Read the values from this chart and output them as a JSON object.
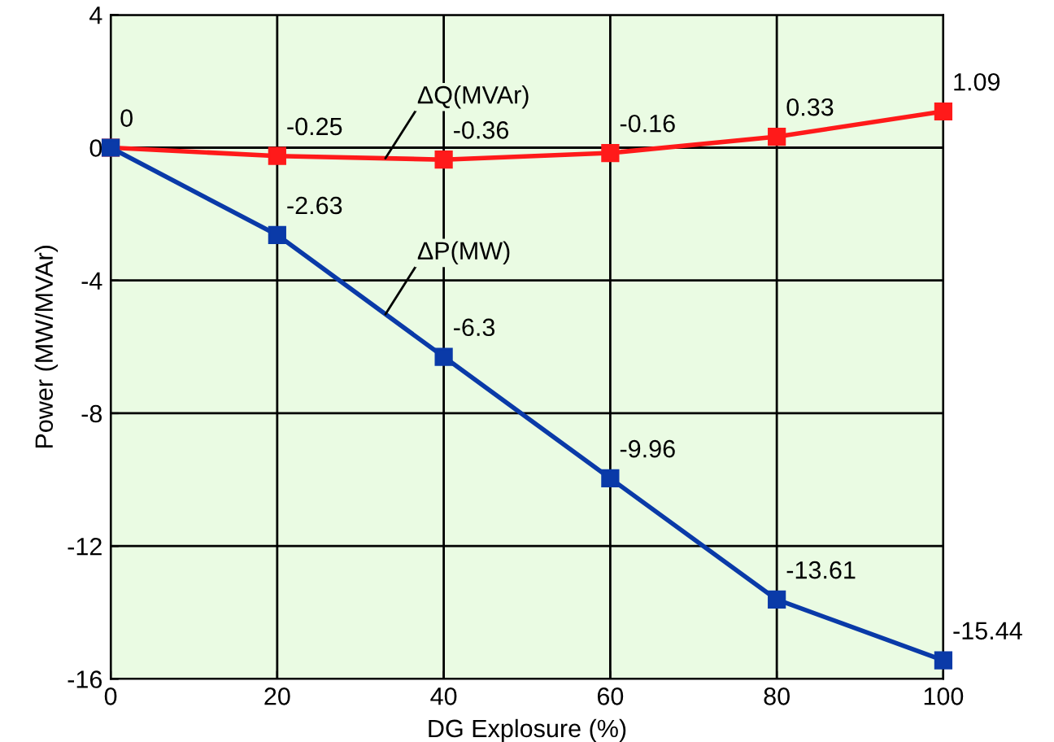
{
  "chart_data": {
    "type": "line",
    "xlabel": "DG Explosure (%)",
    "ylabel": "Power (MW/MVAr)",
    "x": [
      0,
      20,
      40,
      60,
      80,
      100
    ],
    "series": [
      {
        "name": "ΔQ(MVAr)",
        "color": "#ff1a1a",
        "values": [
          0,
          -0.25,
          -0.36,
          -0.16,
          0.33,
          1.09
        ],
        "value_labels": [
          "0",
          "-0.25",
          "-0.36",
          "-0.16",
          "0.33",
          "1.09"
        ]
      },
      {
        "name": "ΔP(MW)",
        "color": "#0a3aa8",
        "values": [
          0,
          -2.63,
          -6.3,
          -9.96,
          -13.61,
          -15.44
        ],
        "value_labels": [
          null,
          "-2.63",
          "-6.3",
          "-9.96",
          "-13.61",
          "-15.44"
        ]
      }
    ],
    "xlim": [
      0,
      100
    ],
    "xticks": [
      0,
      20,
      40,
      60,
      80,
      100
    ],
    "ylim": [
      -16,
      4
    ],
    "yticks": [
      -16,
      -12,
      -8,
      -4,
      0,
      4
    ],
    "grid": true,
    "marker": "square",
    "line_style": "solid"
  }
}
